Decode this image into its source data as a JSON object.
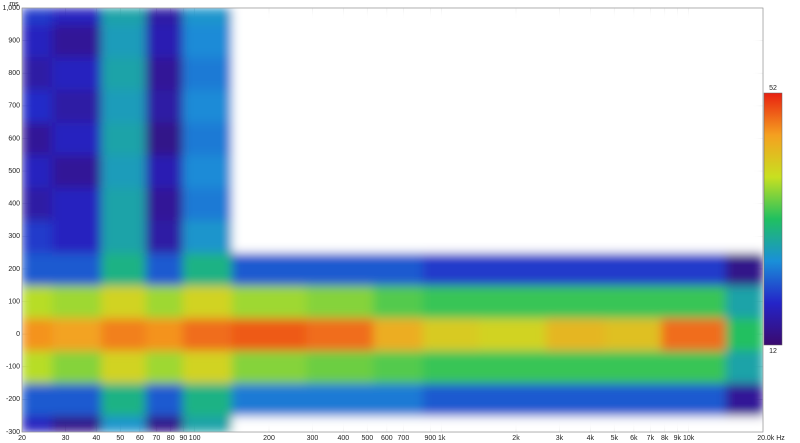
{
  "chart_data": {
    "type": "spectrogram",
    "y_unit": "ms",
    "xlog": true,
    "grid": true,
    "xlim": [
      20,
      20000
    ],
    "ylim": [
      -300,
      1000
    ],
    "xticks": [
      20,
      30,
      40,
      50,
      60,
      70,
      80,
      90,
      100,
      200,
      300,
      400,
      500,
      600,
      700,
      900,
      {
        "value": 1000,
        "label": "1k"
      },
      {
        "value": 2000,
        "label": "2k"
      },
      {
        "value": 3000,
        "label": "3k"
      },
      {
        "value": 4000,
        "label": "4k"
      },
      {
        "value": 5000,
        "label": "5k"
      },
      {
        "value": 6000,
        "label": "6k"
      },
      {
        "value": 7000,
        "label": "7k"
      },
      {
        "value": 8000,
        "label": "8k"
      },
      {
        "value": 9000,
        "label": "9k"
      },
      {
        "value": 10000,
        "label": "10k"
      },
      {
        "value": 20000,
        "label": "20.0k Hz"
      }
    ],
    "yticks": [
      -300,
      -200,
      -100,
      0,
      100,
      200,
      300,
      400,
      500,
      600,
      700,
      800,
      900,
      {
        "value": 1000,
        "label": "1,000"
      }
    ],
    "zlim": [
      12,
      52
    ],
    "colorscale": [
      "#3a0a6e",
      "#2424c8",
      "#1a90d8",
      "#20c060",
      "#c8e020",
      "#f5a020",
      "#e82010"
    ],
    "freqs": [
      20,
      35,
      50,
      80,
      100,
      200,
      400,
      700,
      1000,
      2000,
      3500,
      6000,
      10000,
      20000
    ],
    "times": [
      -300,
      -200,
      -100,
      0,
      100,
      200,
      300,
      400,
      500,
      600,
      700,
      800,
      900,
      1000
    ],
    "z": [
      [
        18,
        14,
        26,
        14,
        28,
        8,
        5,
        5,
        5,
        5,
        5,
        5,
        5,
        5
      ],
      [
        22,
        22,
        30,
        22,
        30,
        24,
        24,
        24,
        22,
        22,
        22,
        22,
        22,
        15
      ],
      [
        38,
        36,
        40,
        37,
        40,
        36,
        35,
        34,
        33,
        33,
        33,
        33,
        33,
        28
      ],
      [
        46,
        45,
        47,
        46,
        48,
        49,
        48,
        44,
        41,
        40,
        43,
        42,
        48,
        32
      ],
      [
        38,
        37,
        40,
        37,
        40,
        37,
        36,
        34,
        33,
        33,
        33,
        33,
        33,
        28
      ],
      [
        22,
        22,
        30,
        22,
        30,
        22,
        22,
        22,
        20,
        20,
        20,
        20,
        20,
        14
      ],
      [
        20,
        18,
        28,
        16,
        26,
        8,
        5,
        5,
        5,
        5,
        5,
        5,
        5,
        5
      ],
      [
        16,
        18,
        28,
        15,
        24,
        5,
        5,
        5,
        5,
        5,
        5,
        5,
        5,
        5
      ],
      [
        18,
        15,
        27,
        17,
        25,
        5,
        5,
        5,
        5,
        5,
        5,
        5,
        5,
        5
      ],
      [
        15,
        18,
        28,
        14,
        24,
        5,
        5,
        5,
        5,
        5,
        5,
        5,
        5,
        5
      ],
      [
        19,
        16,
        27,
        16,
        25,
        5,
        5,
        5,
        5,
        5,
        5,
        5,
        5,
        5
      ],
      [
        16,
        18,
        28,
        15,
        24,
        5,
        5,
        5,
        5,
        5,
        5,
        5,
        5,
        5
      ],
      [
        18,
        15,
        27,
        17,
        25,
        5,
        5,
        5,
        5,
        5,
        5,
        5,
        5,
        5
      ],
      [
        20,
        18,
        28,
        16,
        26,
        5,
        5,
        5,
        5,
        5,
        5,
        5,
        5,
        5
      ]
    ]
  }
}
